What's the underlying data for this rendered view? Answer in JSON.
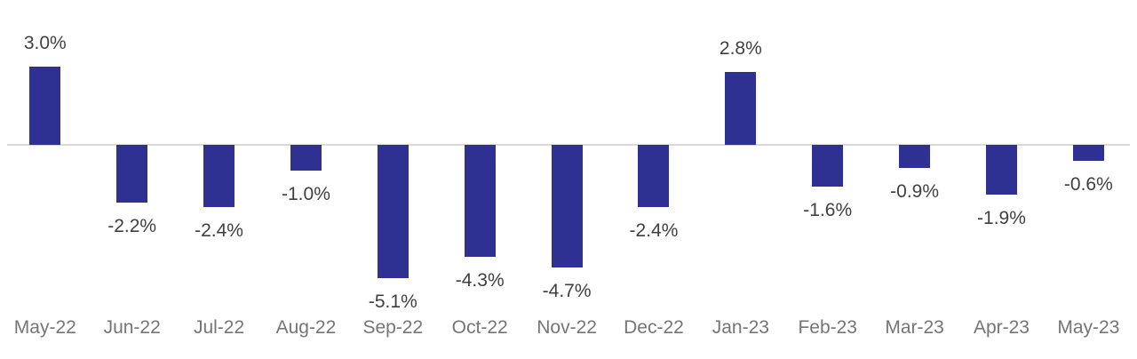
{
  "chart_data": {
    "type": "bar",
    "title": "",
    "xlabel": "",
    "ylabel": "",
    "categories": [
      "May-22",
      "Jun-22",
      "Jul-22",
      "Aug-22",
      "Sep-22",
      "Oct-22",
      "Nov-22",
      "Dec-22",
      "Jan-23",
      "Feb-23",
      "Mar-23",
      "Apr-23",
      "May-23"
    ],
    "values": [
      3.0,
      -2.2,
      -2.4,
      -1.0,
      -5.1,
      -4.3,
      -4.7,
      -2.4,
      2.8,
      -1.6,
      -0.9,
      -1.9,
      -0.6
    ],
    "data_labels": [
      "3.0%",
      "-2.2%",
      "-2.4%",
      "-1.0%",
      "-5.1%",
      "-4.3%",
      "-4.7%",
      "-2.4%",
      "2.8%",
      "-1.6%",
      "-0.9%",
      "-1.9%",
      "-0.6%"
    ],
    "ylim": [
      -5.5,
      3.5
    ],
    "grid": false,
    "legend": false,
    "bar_color": "#2E3192",
    "axis_line_color": "#D9D9D9",
    "data_label_color": "#404040",
    "axis_label_color": "#757575",
    "background_color": "#FFFFFF"
  }
}
